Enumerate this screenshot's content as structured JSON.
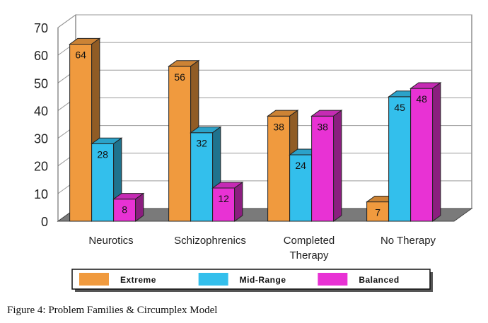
{
  "chart_data": {
    "type": "bar",
    "categories": [
      "Neurotics",
      "Schizophrenics",
      "Completed\nTherapy",
      "No Therapy"
    ],
    "series": [
      {
        "name": "Extreme",
        "values": [
          64,
          56,
          38,
          7
        ],
        "color": "#f09a3e"
      },
      {
        "name": "Mid-Range",
        "values": [
          28,
          32,
          24,
          45
        ],
        "color": "#33bfec"
      },
      {
        "name": "Balanced",
        "values": [
          8,
          12,
          38,
          48
        ],
        "color": "#e832d4"
      }
    ],
    "ylim": [
      0,
      70
    ],
    "yticks": [
      0,
      10,
      20,
      30,
      40,
      50,
      60,
      70
    ],
    "grid": true,
    "three_d": true,
    "legend_position": "bottom"
  },
  "caption": "Figure 4: Problem Families & Circumplex Model"
}
